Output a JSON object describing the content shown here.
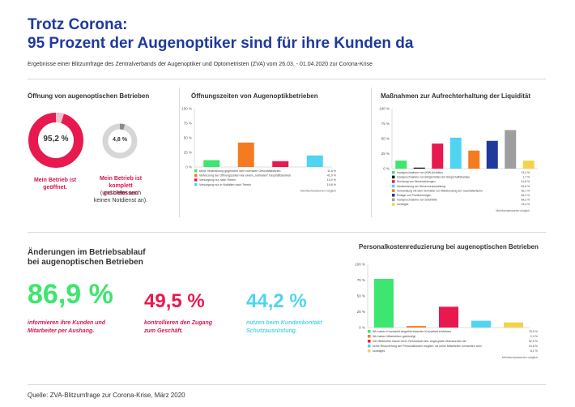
{
  "header": {
    "title_line1": "Trotz Corona:",
    "title_line2": "95 Prozent der Augenoptiker sind für ihre Kunden da",
    "subtitle": "Ergebnisse einer Blitzumfrage des Zentralverbands der Augenoptiker und Optometristen (ZVA) vom 26.03. - 01.04.2020 zur Corona-Krise"
  },
  "opening": {
    "title": "Öffnung von augenoptischen Betrieben",
    "open_value": "95,2 %",
    "closed_value": "4,8 %",
    "open_caption": "Mein Betrieb ist geöffnet.",
    "closed_caption": "Mein Betrieb ist komplett geschlossen",
    "closed_note": "(und bietet auch keinen Notdienst an).",
    "colors": {
      "open": "#e8194f",
      "closed": "#cfcfcf"
    }
  },
  "changes": {
    "title_line1": "Änderungen im Betriebsablauf",
    "title_line2": "bei augenoptischen Betrieben",
    "stats": [
      {
        "value": "86,9 %",
        "text": "informieren ihre Kunden und Mitarbeiter per Aushang.",
        "color": "#3de66e"
      },
      {
        "value": "49,5 %",
        "text": "kontrollieren den Zugang zum Geschäft.",
        "color": "#e8194f"
      },
      {
        "value": "44,2 %",
        "text": "nutzen beim Kundenkontakt Schutzausrüstung.",
        "color": "#4fd4f2"
      }
    ]
  },
  "footer": {
    "source": "Quelle: ZVA-Blitzumfrage zur Corona-Krise, März 2020"
  },
  "chart_data": [
    {
      "id": "oeffnungszeiten",
      "type": "bar",
      "title": "Öffnungszeiten von Augenoptikbetrieben",
      "ylim": [
        0,
        100
      ],
      "yticks": [
        "100 %",
        "75 %",
        "50 %",
        "25 %",
        "0 %"
      ],
      "note": "Mehrfachantworten möglich",
      "series": [
        {
          "name": "keine Veränderung gegenüber dem normalen Geschäftsbetrieb",
          "value": 11.8,
          "label": "11,8 %",
          "color": "#3de66e"
        },
        {
          "name": "Verkürzung der Öffnungszeiten wie einem „normalen“ Geschäftsbetrieb",
          "value": 41.9,
          "label": "41,9 %",
          "color": "#f47b20"
        },
        {
          "name": "Versorgung nur nach Termin",
          "value": 10.0,
          "label": "10,0 %",
          "color": "#e8194f"
        },
        {
          "name": "Versorgung nur in Notfällen nach Termin",
          "value": 19.8,
          "label": "19,8 %",
          "color": "#4fd4f2"
        }
      ]
    },
    {
      "id": "liquiditaet",
      "type": "bar",
      "title": "Maßnahmen zur Aufrechterhaltung der Liquidität",
      "ylim": [
        0,
        100
      ],
      "yticks": [
        "100 %",
        "75 %",
        "50 %",
        "25 %",
        "0 %"
      ],
      "note": "Mehrfachantworten möglich",
      "series": [
        {
          "name": "Inanspruchnahme von (KfW-)Krediten",
          "value": 13.4,
          "label": "13,4 %",
          "color": "#3de66e"
        },
        {
          "name": "Inanspruchnahme von Bürgschaften der Bürgschaftsbanken",
          "value": 1.7,
          "label": "1,7 %",
          "color": "#111111"
        },
        {
          "name": "Stundung von Steuerzahlungen",
          "value": 41.8,
          "label": "41,8 %",
          "color": "#e8194f"
        },
        {
          "name": "Herabsetzung der Steuervorauszahlung",
          "value": 51.6,
          "label": "51,6 %",
          "color": "#4fd4f2"
        },
        {
          "name": "Verhandlung mit dem Vermieter zur Mietstundung der Geschäftsräume",
          "value": 30.1,
          "label": "30,1 %",
          "color": "#f47b20"
        },
        {
          "name": "Einlage von Privatvermögen",
          "value": 46.3,
          "label": "46,3 %",
          "color": "#1f3a9c"
        },
        {
          "name": "Inanspruchnahme von Soforthilfe",
          "value": 64.3,
          "label": "64,3 %",
          "color": "#9e9e9e"
        },
        {
          "name": "sonstiges",
          "value": 13.4,
          "label": "13,4 %",
          "color": "#f2d44a"
        }
      ]
    },
    {
      "id": "personalkosten",
      "type": "bar",
      "title": "Personalkostenreduzierung bei augenoptischen Betrieben",
      "ylim": [
        0,
        100
      ],
      "yticks": [
        "100 %",
        "75 %",
        "50 %",
        "25 %",
        "0 %"
      ],
      "note": "Mehrfachantworten möglich",
      "series": [
        {
          "name": "Wir haben Kurzarbeit eingeführt/werden Kurzarbeit einführen",
          "value": 76.9,
          "label": "76,9 %",
          "color": "#3de66e"
        },
        {
          "name": "Wir haben Mitarbeitern gekündigt",
          "value": 2.4,
          "label": "2,4 %",
          "color": "#f47b20"
        },
        {
          "name": "Die Mitarbeiter bauen ihren Resturlaub bzw. angesparte Überstunden ab",
          "value": 32.9,
          "label": "32,9 %",
          "color": "#e8194f"
        },
        {
          "name": "keine Reduzierung der Personalkosten möglich, da keine Mitarbeiter vorhanden sind",
          "value": 10.8,
          "label": "10,8 %",
          "color": "#4fd4f2"
        },
        {
          "name": "sonstiges",
          "value": 8.1,
          "label": "8,1 %",
          "color": "#f2d44a"
        }
      ]
    }
  ]
}
